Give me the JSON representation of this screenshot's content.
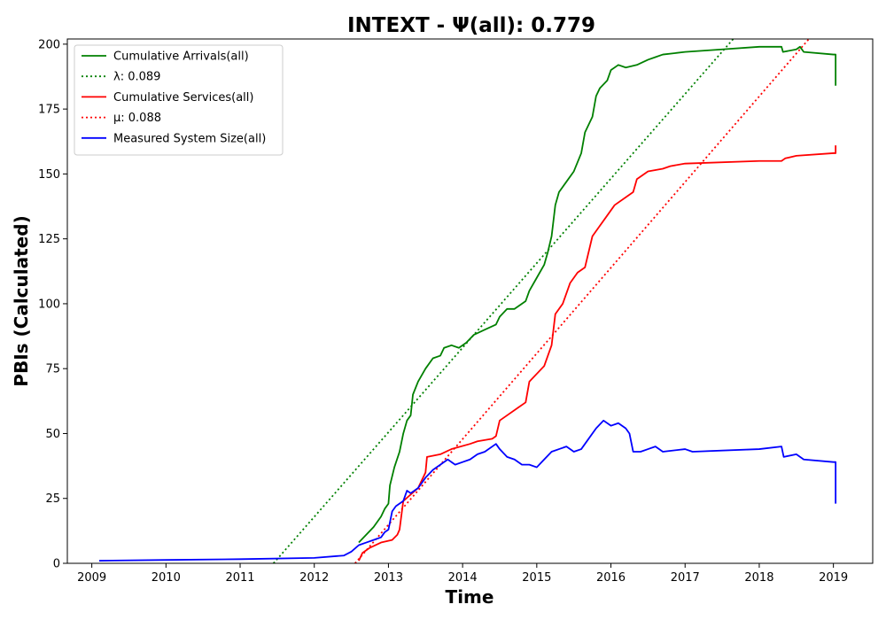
{
  "chart_data": {
    "type": "line",
    "title": "INTEXT -  Ψ(all): 0.779",
    "xlabel": "Time",
    "ylabel": "PBIs (Calculated)",
    "xlim": [
      2008.67,
      2019.53
    ],
    "ylim": [
      0,
      202
    ],
    "x_ticks": [
      2009,
      2010,
      2011,
      2012,
      2013,
      2014,
      2015,
      2016,
      2017,
      2018,
      2019
    ],
    "y_ticks": [
      0,
      25,
      50,
      75,
      100,
      125,
      150,
      175,
      200
    ],
    "grid": false,
    "legend_position": "top-left",
    "series": [
      {
        "name": "Cumulative Arrivals(all)",
        "color": "#008000",
        "style": "solid",
        "points": [
          [
            2012.6,
            8
          ],
          [
            2012.7,
            11
          ],
          [
            2012.8,
            14
          ],
          [
            2012.9,
            18
          ],
          [
            2012.95,
            21
          ],
          [
            2013.0,
            23
          ],
          [
            2013.02,
            30
          ],
          [
            2013.08,
            37
          ],
          [
            2013.15,
            43
          ],
          [
            2013.2,
            50
          ],
          [
            2013.25,
            55
          ],
          [
            2013.3,
            57
          ],
          [
            2013.33,
            65
          ],
          [
            2013.4,
            70
          ],
          [
            2013.5,
            75
          ],
          [
            2013.6,
            79
          ],
          [
            2013.7,
            80
          ],
          [
            2013.75,
            83
          ],
          [
            2013.85,
            84
          ],
          [
            2013.95,
            83
          ],
          [
            2014.05,
            85
          ],
          [
            2014.15,
            88
          ],
          [
            2014.3,
            90
          ],
          [
            2014.45,
            92
          ],
          [
            2014.5,
            95
          ],
          [
            2014.6,
            98
          ],
          [
            2014.7,
            98
          ],
          [
            2014.85,
            101
          ],
          [
            2014.9,
            105
          ],
          [
            2015.0,
            110
          ],
          [
            2015.1,
            115
          ],
          [
            2015.15,
            120
          ],
          [
            2015.2,
            126
          ],
          [
            2015.25,
            138
          ],
          [
            2015.3,
            143
          ],
          [
            2015.4,
            147
          ],
          [
            2015.5,
            151
          ],
          [
            2015.6,
            158
          ],
          [
            2015.65,
            166
          ],
          [
            2015.75,
            172
          ],
          [
            2015.8,
            180
          ],
          [
            2015.85,
            183
          ],
          [
            2015.95,
            186
          ],
          [
            2016.0,
            190
          ],
          [
            2016.1,
            192
          ],
          [
            2016.2,
            191
          ],
          [
            2016.35,
            192
          ],
          [
            2016.5,
            194
          ],
          [
            2016.6,
            195
          ],
          [
            2016.7,
            196
          ],
          [
            2017.0,
            197
          ],
          [
            2017.5,
            198
          ],
          [
            2018.0,
            199
          ],
          [
            2018.3,
            199
          ],
          [
            2018.32,
            197
          ],
          [
            2018.5,
            198
          ],
          [
            2018.55,
            199
          ],
          [
            2018.6,
            197
          ],
          [
            2019.0,
            196
          ],
          [
            2019.03,
            196
          ],
          [
            2019.03,
            184
          ]
        ]
      },
      {
        "name": "λ: 0.089",
        "color": "#008000",
        "style": "dotted",
        "points": [
          [
            2011.45,
            0
          ],
          [
            2017.65,
            202
          ]
        ]
      },
      {
        "name": "Cumulative Services(all)",
        "color": "#ff0000",
        "style": "solid",
        "points": [
          [
            2012.6,
            1
          ],
          [
            2012.65,
            4
          ],
          [
            2012.75,
            6
          ],
          [
            2012.9,
            8
          ],
          [
            2013.05,
            9
          ],
          [
            2013.12,
            11
          ],
          [
            2013.15,
            13
          ],
          [
            2013.2,
            24
          ],
          [
            2013.4,
            29
          ],
          [
            2013.5,
            35
          ],
          [
            2013.52,
            41
          ],
          [
            2013.7,
            42
          ],
          [
            2013.85,
            44
          ],
          [
            2014.1,
            46
          ],
          [
            2014.2,
            47
          ],
          [
            2014.4,
            48
          ],
          [
            2014.45,
            49
          ],
          [
            2014.5,
            55
          ],
          [
            2014.6,
            57
          ],
          [
            2014.75,
            60
          ],
          [
            2014.85,
            62
          ],
          [
            2014.9,
            70
          ],
          [
            2015.0,
            73
          ],
          [
            2015.1,
            76
          ],
          [
            2015.2,
            84
          ],
          [
            2015.25,
            96
          ],
          [
            2015.35,
            100
          ],
          [
            2015.45,
            108
          ],
          [
            2015.55,
            112
          ],
          [
            2015.65,
            114
          ],
          [
            2015.75,
            126
          ],
          [
            2015.85,
            130
          ],
          [
            2015.95,
            134
          ],
          [
            2016.05,
            138
          ],
          [
            2016.2,
            141
          ],
          [
            2016.3,
            143
          ],
          [
            2016.35,
            148
          ],
          [
            2016.5,
            151
          ],
          [
            2016.7,
            152
          ],
          [
            2016.8,
            153
          ],
          [
            2017.0,
            154
          ],
          [
            2018.0,
            155
          ],
          [
            2018.3,
            155
          ],
          [
            2018.35,
            156
          ],
          [
            2018.5,
            157
          ],
          [
            2019.0,
            158
          ],
          [
            2019.03,
            158
          ],
          [
            2019.03,
            161
          ]
        ]
      },
      {
        "name": "μ: 0.088",
        "color": "#ff0000",
        "style": "dotted",
        "points": [
          [
            2012.55,
            0
          ],
          [
            2018.7,
            203
          ]
        ]
      },
      {
        "name": "Measured System Size(all)",
        "color": "#0000ff",
        "style": "solid",
        "points": [
          [
            2009.1,
            1
          ],
          [
            2010.0,
            1.3
          ],
          [
            2011.0,
            1.6
          ],
          [
            2012.0,
            2.1
          ],
          [
            2012.4,
            3
          ],
          [
            2012.5,
            4.5
          ],
          [
            2012.6,
            7
          ],
          [
            2012.7,
            8
          ],
          [
            2012.8,
            9
          ],
          [
            2012.9,
            10
          ],
          [
            2012.95,
            12
          ],
          [
            2013.0,
            13
          ],
          [
            2013.05,
            20
          ],
          [
            2013.1,
            22
          ],
          [
            2013.2,
            24
          ],
          [
            2013.25,
            28
          ],
          [
            2013.3,
            27
          ],
          [
            2013.4,
            29
          ],
          [
            2013.5,
            33
          ],
          [
            2013.6,
            36
          ],
          [
            2013.7,
            38
          ],
          [
            2013.8,
            40
          ],
          [
            2013.9,
            38
          ],
          [
            2014.0,
            39
          ],
          [
            2014.1,
            40
          ],
          [
            2014.2,
            42
          ],
          [
            2014.3,
            43
          ],
          [
            2014.45,
            46
          ],
          [
            2014.5,
            44
          ],
          [
            2014.6,
            41
          ],
          [
            2014.7,
            40
          ],
          [
            2014.8,
            38
          ],
          [
            2014.9,
            38
          ],
          [
            2015.0,
            37
          ],
          [
            2015.1,
            40
          ],
          [
            2015.2,
            43
          ],
          [
            2015.3,
            44
          ],
          [
            2015.4,
            45
          ],
          [
            2015.5,
            43
          ],
          [
            2015.6,
            44
          ],
          [
            2015.7,
            48
          ],
          [
            2015.8,
            52
          ],
          [
            2015.9,
            55
          ],
          [
            2016.0,
            53
          ],
          [
            2016.1,
            54
          ],
          [
            2016.2,
            52
          ],
          [
            2016.25,
            50
          ],
          [
            2016.3,
            43
          ],
          [
            2016.4,
            43
          ],
          [
            2016.5,
            44
          ],
          [
            2016.6,
            45
          ],
          [
            2016.7,
            43
          ],
          [
            2017.0,
            44
          ],
          [
            2017.1,
            43
          ],
          [
            2018.0,
            44
          ],
          [
            2018.3,
            45
          ],
          [
            2018.33,
            41
          ],
          [
            2018.5,
            42
          ],
          [
            2018.6,
            40
          ],
          [
            2019.0,
            39
          ],
          [
            2019.03,
            39
          ],
          [
            2019.03,
            23
          ]
        ]
      }
    ]
  }
}
